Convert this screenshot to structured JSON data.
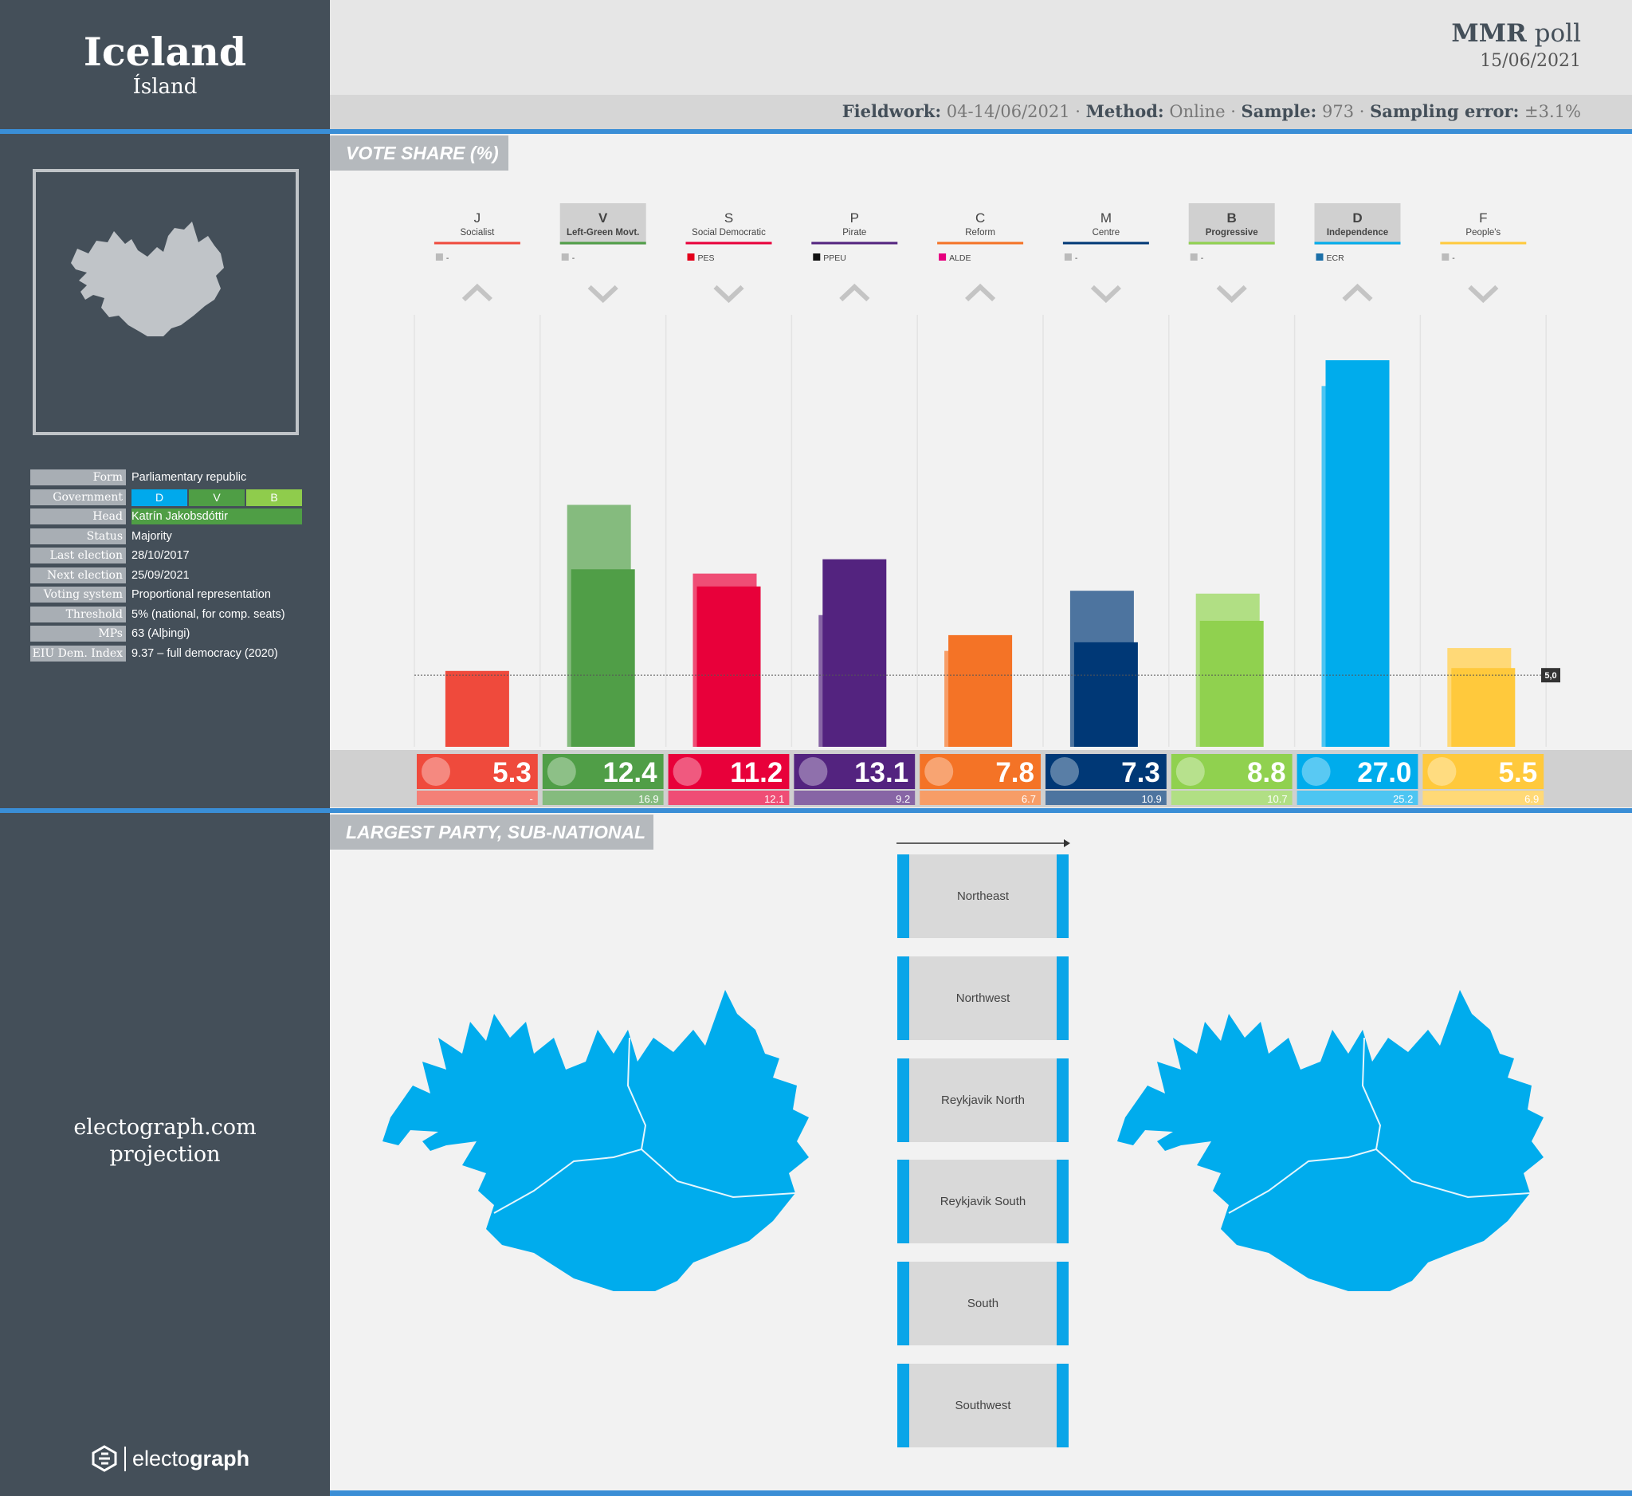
{
  "header": {
    "country": "Iceland",
    "country_native": "Ísland",
    "pollster": "MMR",
    "pollster_suffix": "poll",
    "date": "15/06/2021",
    "fieldwork_label": "Fieldwork:",
    "fieldwork": "04-14/06/2021",
    "method_label": "Method:",
    "method": "Online",
    "sample_label": "Sample:",
    "sample": "973",
    "error_label": "Sampling error:",
    "error": "±3.1%"
  },
  "info": {
    "rows": [
      {
        "label": "Form",
        "value": "Parliamentary republic"
      },
      {
        "label": "Government",
        "value": ""
      },
      {
        "label": "Head",
        "value": "Katrín Jakobsdóttir"
      },
      {
        "label": "Status",
        "value": "Majority"
      },
      {
        "label": "Last election",
        "value": "28/10/2017"
      },
      {
        "label": "Next election",
        "value": "25/09/2021"
      },
      {
        "label": "Voting system",
        "value": "Proportional representation"
      },
      {
        "label": "Threshold",
        "value": "5% (national, for comp. seats)"
      },
      {
        "label": "MPs",
        "value": "63 (Alþingi)"
      },
      {
        "label": "EIU Dem. Index",
        "value": "9.37 – full democracy (2020)"
      }
    ],
    "government": [
      {
        "code": "D",
        "color": "#00a9ec"
      },
      {
        "code": "V",
        "color": "#4f9e45"
      },
      {
        "code": "B",
        "color": "#8fcc4c"
      }
    ]
  },
  "sections": {
    "vote_share": "VOTE SHARE (%)",
    "subnational": "LARGEST PARTY, SUB-NATIONAL"
  },
  "projection": {
    "line1": "electograph.com",
    "line2": "projection"
  },
  "brand": {
    "prefix": "electo",
    "suffix": "graph"
  },
  "chart_data": {
    "type": "bar",
    "title": "VOTE SHARE (%)",
    "threshold": 5.0,
    "threshold_label": "5,0",
    "ylim": [
      0,
      30
    ],
    "parties": [
      {
        "code": "J",
        "name": "Socialist",
        "group": "-",
        "group_color": "#bbbbbb",
        "color": "#ef4a3c",
        "value": 5.3,
        "value_label": "5.3",
        "previous": null,
        "previous_label": "-",
        "trend": "up",
        "in_government": false
      },
      {
        "code": "V",
        "name": "Left-Green Movt.",
        "group": "-",
        "group_color": "#bbbbbb",
        "color": "#509e47",
        "value": 12.4,
        "value_label": "12.4",
        "previous": 16.9,
        "previous_label": "16.9",
        "trend": "down",
        "in_government": true
      },
      {
        "code": "S",
        "name": "Social Democratic",
        "group": "PES",
        "group_color": "#e3001b",
        "color": "#e8003a",
        "value": 11.2,
        "value_label": "11.2",
        "previous": 12.1,
        "previous_label": "12.1",
        "trend": "down",
        "in_government": false
      },
      {
        "code": "P",
        "name": "Pirate",
        "group": "PPEU",
        "group_color": "#111111",
        "color": "#53237f",
        "value": 13.1,
        "value_label": "13.1",
        "previous": 9.2,
        "previous_label": "9.2",
        "trend": "up",
        "in_government": false
      },
      {
        "code": "C",
        "name": "Reform",
        "group": "ALDE",
        "group_color": "#e6007e",
        "color": "#f47326",
        "value": 7.8,
        "value_label": "7.8",
        "previous": 6.7,
        "previous_label": "6.7",
        "trend": "up",
        "in_government": false
      },
      {
        "code": "M",
        "name": "Centre",
        "group": "-",
        "group_color": "#bbbbbb",
        "color": "#003876",
        "value": 7.3,
        "value_label": "7.3",
        "previous": 10.9,
        "previous_label": "10.9",
        "trend": "down",
        "in_government": false
      },
      {
        "code": "B",
        "name": "Progressive",
        "group": "-",
        "group_color": "#bbbbbb",
        "color": "#90d14f",
        "value": 8.8,
        "value_label": "8.8",
        "previous": 10.7,
        "previous_label": "10.7",
        "trend": "down",
        "in_government": true
      },
      {
        "code": "D",
        "name": "Independence",
        "group": "ECR",
        "group_color": "#1b6fa8",
        "color": "#00acec",
        "value": 27.0,
        "value_label": "27.0",
        "previous": 25.2,
        "previous_label": "25.2",
        "trend": "up",
        "in_government": true
      },
      {
        "code": "F",
        "name": "People's",
        "group": "-",
        "group_color": "#bbbbbb",
        "color": "#ffc93c",
        "value": 5.5,
        "value_label": "5.5",
        "previous": 6.9,
        "previous_label": "6.9",
        "trend": "down",
        "in_government": false
      }
    ]
  },
  "regions": [
    "Northeast",
    "Northwest",
    "Reykjavik North",
    "Reykjavik South",
    "South",
    "Southwest"
  ],
  "colors": {
    "map_fill": "#00aced",
    "sidebar": "#444f59",
    "accent": "#3a8ed6"
  }
}
